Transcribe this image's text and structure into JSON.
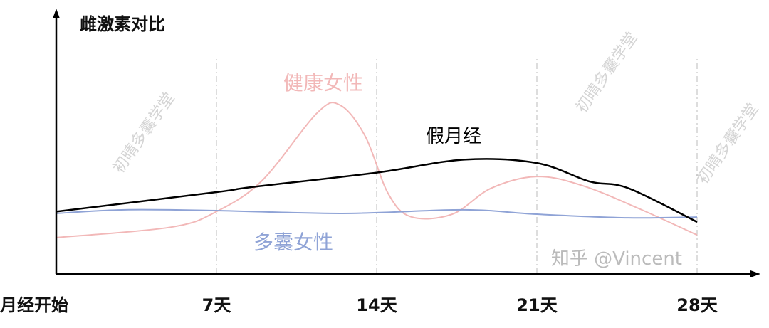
{
  "chart_data": {
    "type": "line",
    "title": "雌激素对比",
    "xlabel": "",
    "ylabel": "",
    "x_ticks": [
      {
        "value": 0,
        "label": "月经开始"
      },
      {
        "value": 7,
        "label": "7天"
      },
      {
        "value": 14,
        "label": "14天"
      },
      {
        "value": 21,
        "label": "21天"
      },
      {
        "value": 28,
        "label": "28天"
      }
    ],
    "xlim": [
      0,
      28
    ],
    "ylim": [
      0,
      100
    ],
    "y_units": "relative (no y scale printed)",
    "grid": "vertical dashed lines at 7, 14, 21, 28",
    "legend": "inline labels",
    "series": [
      {
        "name": "健康女性",
        "color": "#f2b8b8",
        "points": [
          [
            0,
            14
          ],
          [
            5,
            18
          ],
          [
            7,
            24
          ],
          [
            9,
            36
          ],
          [
            11.4,
            62
          ],
          [
            12.4,
            65
          ],
          [
            13.5,
            53
          ],
          [
            14.5,
            31
          ],
          [
            15.5,
            22
          ],
          [
            17.3,
            23
          ],
          [
            19,
            33
          ],
          [
            21,
            37.5
          ],
          [
            23,
            34
          ],
          [
            25.5,
            25
          ],
          [
            28,
            15
          ]
        ]
      },
      {
        "name": "假月经",
        "color": "#000000",
        "points": [
          [
            0,
            24
          ],
          [
            7,
            31.5
          ],
          [
            8.5,
            33.4
          ],
          [
            14,
            39
          ],
          [
            17.8,
            44
          ],
          [
            21,
            42.7
          ],
          [
            23.3,
            35.6
          ],
          [
            25,
            33
          ],
          [
            28,
            20
          ]
        ]
      },
      {
        "name": "多囊女性",
        "color": "#8fa3d6",
        "points": [
          [
            0,
            23.3
          ],
          [
            3,
            24.7
          ],
          [
            7,
            24.4
          ],
          [
            12.5,
            23.3
          ],
          [
            17.8,
            24.7
          ],
          [
            21,
            23
          ],
          [
            25,
            21.6
          ],
          [
            28,
            21.9
          ]
        ]
      }
    ]
  },
  "watermarks": {
    "diagonal": "初晴多囊学堂",
    "corner": "知乎 @Vincent"
  }
}
